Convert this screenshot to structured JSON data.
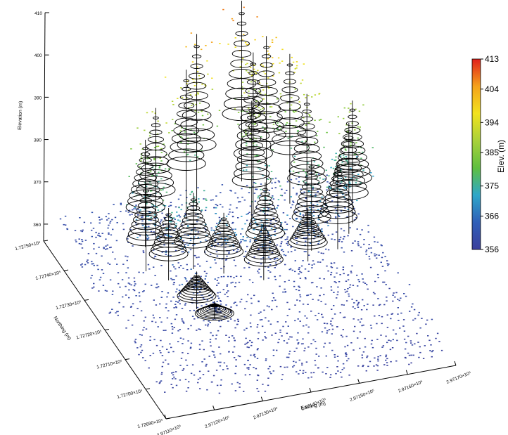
{
  "chart_data": {
    "type": "scatter",
    "subtype": "3d-point-cloud-with-tree-crown-models",
    "z_axis": {
      "label": "Elevation (m)",
      "ticks": [
        360,
        370,
        380,
        390,
        400,
        410
      ],
      "tick_labels": [
        "360",
        "370",
        "380",
        "390",
        "400",
        "410"
      ],
      "range": [
        356,
        410
      ]
    },
    "y_axis": {
      "label": "Northing (m)",
      "ticks": [
        172690,
        172700,
        172710,
        172720,
        172730,
        172740,
        172750
      ],
      "tick_labels": [
        "1.72690×10⁵",
        "1.72700×10⁵",
        "1.72710×10⁵",
        "1.72720×10⁵",
        "1.72730×10⁵",
        "1.72740×10⁵",
        "1.72750×10⁵"
      ]
    },
    "x_axis": {
      "label": "Easting (m)",
      "ticks": [
        297110,
        297120,
        297130,
        297140,
        297150,
        297160,
        297170
      ],
      "tick_labels": [
        "2.97110×10⁵",
        "2.97120×10⁵",
        "2.97130×10⁵",
        "2.97140×10⁵",
        "2.97150×10⁵",
        "2.97160×10⁵",
        "2.97170×10⁵"
      ]
    },
    "colorbar": {
      "title": "Elev. (m)",
      "range": [
        356,
        413
      ],
      "ticks": [
        356,
        366,
        375,
        385,
        394,
        404,
        413
      ],
      "tick_labels": [
        "356",
        "366",
        "375",
        "385",
        "394",
        "404",
        "413"
      ],
      "colors": [
        "#3b3f9c",
        "#2f5fb8",
        "#2ea7c9",
        "#5fbf3f",
        "#a9d13a",
        "#f2e21e",
        "#f5a21c",
        "#e0201b"
      ]
    },
    "trees": [
      {
        "x": 297129,
        "y": 172740,
        "base_z": 360,
        "top_z": 393
      },
      {
        "x": 297137,
        "y": 172744,
        "base_z": 360,
        "top_z": 398
      },
      {
        "x": 297140,
        "y": 172746,
        "base_z": 360,
        "top_z": 405
      },
      {
        "x": 297151,
        "y": 172750,
        "base_z": 362,
        "top_z": 408
      },
      {
        "x": 297154,
        "y": 172745,
        "base_z": 362,
        "top_z": 402
      },
      {
        "x": 297158,
        "y": 172743,
        "base_z": 360,
        "top_z": 398
      },
      {
        "x": 297150,
        "y": 172742,
        "base_z": 360,
        "top_z": 401
      },
      {
        "x": 297148,
        "y": 172738,
        "base_z": 360,
        "top_z": 392
      },
      {
        "x": 297159,
        "y": 172737,
        "base_z": 358,
        "top_z": 392
      },
      {
        "x": 297166,
        "y": 172733,
        "base_z": 358,
        "top_z": 386
      },
      {
        "x": 297168,
        "y": 172736,
        "base_z": 358,
        "top_z": 389
      },
      {
        "x": 297126,
        "y": 172738,
        "base_z": 360,
        "top_z": 387
      },
      {
        "x": 297124,
        "y": 172733,
        "base_z": 358,
        "top_z": 380
      },
      {
        "x": 297127,
        "y": 172729,
        "base_z": 358,
        "top_z": 376
      },
      {
        "x": 297133,
        "y": 172731,
        "base_z": 358,
        "top_z": 377
      },
      {
        "x": 297138,
        "y": 172728,
        "base_z": 358,
        "top_z": 373
      },
      {
        "x": 297147,
        "y": 172729,
        "base_z": 358,
        "top_z": 378
      },
      {
        "x": 297145,
        "y": 172725,
        "base_z": 357,
        "top_z": 371
      },
      {
        "x": 297129,
        "y": 172720,
        "base_z": 357,
        "top_z": 366
      },
      {
        "x": 297131,
        "y": 172716,
        "base_z": 357,
        "top_z": 361
      },
      {
        "x": 297157,
        "y": 172730,
        "base_z": 358,
        "top_z": 381
      },
      {
        "x": 297162,
        "y": 172729,
        "base_z": 358,
        "top_z": 380
      },
      {
        "x": 297155,
        "y": 172727,
        "base_z": 358,
        "top_z": 371
      }
    ],
    "point_density_note": "",
    "grid": false
  }
}
